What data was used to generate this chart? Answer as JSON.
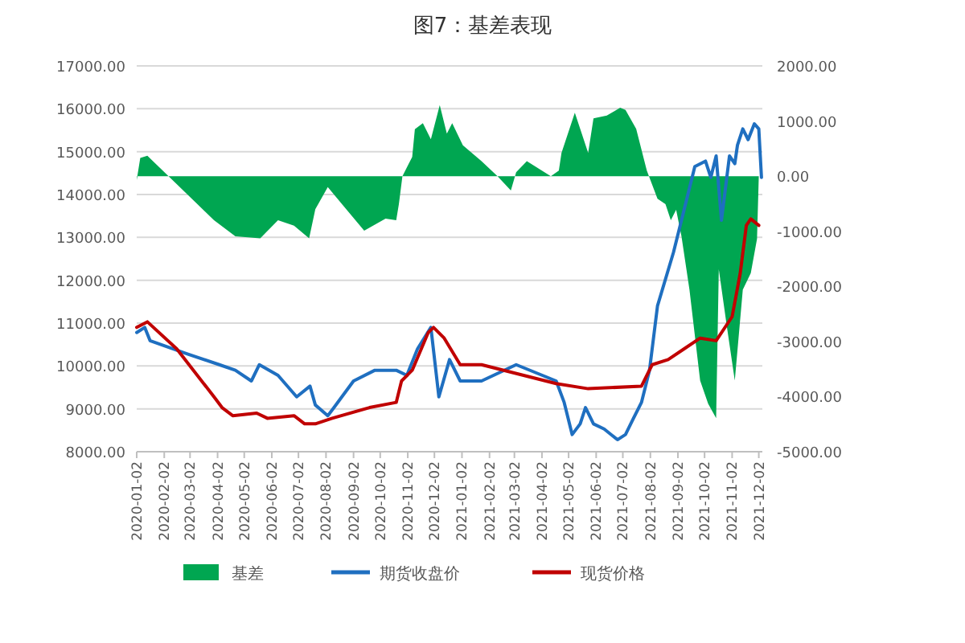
{
  "chart_data": {
    "type": "line",
    "title": "图7：基差表现",
    "grid": "y",
    "legend": "bottom",
    "xlim": [
      "2020-01-02",
      "2021-12-06"
    ],
    "xticks": [
      {
        "value": "2020-01-02",
        "label": "2020-01-02"
      },
      {
        "value": "2020-02-02",
        "label": "2020-02-02"
      },
      {
        "value": "2020-03-02",
        "label": "2020-03-02"
      },
      {
        "value": "2020-04-02",
        "label": "2020-04-02"
      },
      {
        "value": "2020-05-02",
        "label": "2020-05-02"
      },
      {
        "value": "2020-06-02",
        "label": "2020-06-02"
      },
      {
        "value": "2020-07-02",
        "label": "2020-07-02"
      },
      {
        "value": "2020-08-02",
        "label": "2020-08-02"
      },
      {
        "value": "2020-09-02",
        "label": "2020-09-02"
      },
      {
        "value": "2020-10-02",
        "label": "2020-10-02"
      },
      {
        "value": "2020-11-02",
        "label": "2020-11-02"
      },
      {
        "value": "2020-12-02",
        "label": "2020-12-02"
      },
      {
        "value": "2021-01-02",
        "label": "2021-01-02"
      },
      {
        "value": "2021-02-02",
        "label": "2021-02-02"
      },
      {
        "value": "2021-03-02",
        "label": "2021-03-02"
      },
      {
        "value": "2021-04-02",
        "label": "2021-04-02"
      },
      {
        "value": "2021-05-02",
        "label": "2021-05-02"
      },
      {
        "value": "2021-06-02",
        "label": "2021-06-02"
      },
      {
        "value": "2021-07-02",
        "label": "2021-07-02"
      },
      {
        "value": "2021-08-02",
        "label": "2021-08-02"
      },
      {
        "value": "2021-09-02",
        "label": "2021-09-02"
      },
      {
        "value": "2021-10-02",
        "label": "2021-10-02"
      },
      {
        "value": "2021-11-02",
        "label": "2021-11-02"
      },
      {
        "value": "2021-12-02",
        "label": "2021-12-02"
      }
    ],
    "ylim": [
      8000,
      17000
    ],
    "yticks": [
      {
        "value": 8000,
        "label": "8000.00"
      },
      {
        "value": 9000,
        "label": "9000.00"
      },
      {
        "value": 10000,
        "label": "10000.00"
      },
      {
        "value": 11000,
        "label": "11000.00"
      },
      {
        "value": 12000,
        "label": "12000.00"
      },
      {
        "value": 13000,
        "label": "13000.00"
      },
      {
        "value": 14000,
        "label": "14000.00"
      },
      {
        "value": 15000,
        "label": "15000.00"
      },
      {
        "value": 16000,
        "label": "16000.00"
      },
      {
        "value": 17000,
        "label": "17000.00"
      }
    ],
    "y2lim": [
      -5000,
      2000
    ],
    "y2ticks": [
      {
        "value": -5000,
        "label": "-5000.00"
      },
      {
        "value": -4000,
        "label": "-4000.00"
      },
      {
        "value": -3000,
        "label": "-3000.00"
      },
      {
        "value": -2000,
        "label": "-2000.00"
      },
      {
        "value": -1000,
        "label": "-1000.00"
      },
      {
        "value": 0,
        "label": "0.00"
      },
      {
        "value": 1000,
        "label": "1000.00"
      },
      {
        "value": 2000,
        "label": "2000.00"
      }
    ],
    "series": [
      {
        "name": "基差",
        "type": "area",
        "axis": "y2",
        "color": "#00a651",
        "x": [
          "2020-01-02",
          "2020-01-06",
          "2020-01-14",
          "2020-03-29",
          "2020-04-22",
          "2020-05-20",
          "2020-06-09",
          "2020-06-27",
          "2020-07-14",
          "2020-07-21",
          "2020-08-04",
          "2020-09-14",
          "2020-10-08",
          "2020-10-20",
          "2020-10-23",
          "2020-10-27",
          "2020-11-07",
          "2020-11-10",
          "2020-11-19",
          "2020-11-28",
          "2020-12-08",
          "2020-12-16",
          "2020-12-22",
          "2021-01-03",
          "2021-01-24",
          "2021-02-11",
          "2021-02-26",
          "2021-03-04",
          "2021-03-16",
          "2021-04-12",
          "2021-04-21",
          "2021-04-24",
          "2021-05-09",
          "2021-05-15",
          "2021-05-24",
          "2021-05-30",
          "2021-06-14",
          "2021-06-29",
          "2021-07-05",
          "2021-07-17",
          "2021-07-29",
          "2021-08-10",
          "2021-08-19",
          "2021-08-25",
          "2021-08-31",
          "2021-09-06",
          "2021-09-15",
          "2021-09-27",
          "2021-10-06",
          "2021-10-15",
          "2021-10-18",
          "2021-10-27",
          "2021-11-05",
          "2021-11-14",
          "2021-11-23",
          "2021-11-30",
          "2021-12-02"
        ],
        "values": [
          -70,
          330,
          370,
          -800,
          -1090,
          -1130,
          -800,
          -900,
          -1130,
          -600,
          -200,
          -990,
          -770,
          -800,
          -510,
          0,
          350,
          850,
          960,
          670,
          1290,
          770,
          960,
          560,
          270,
          0,
          -260,
          70,
          270,
          0,
          100,
          420,
          1150,
          860,
          420,
          1050,
          1100,
          1240,
          1200,
          860,
          100,
          -410,
          -510,
          -800,
          -610,
          -1090,
          -2060,
          -3710,
          -4130,
          -4390,
          -1690,
          -2720,
          -3710,
          -2060,
          -1760,
          -1140,
          0
        ]
      },
      {
        "name": "期货收盘价",
        "color": "#1f6fc0",
        "x": [
          "2020-01-02",
          "2020-01-11",
          "2020-01-17",
          "2020-02-28",
          "2020-04-04",
          "2020-04-22",
          "2020-05-10",
          "2020-05-19",
          "2020-06-09",
          "2020-06-30",
          "2020-07-15",
          "2020-07-21",
          "2020-08-04",
          "2020-08-11",
          "2020-09-02",
          "2020-09-26",
          "2020-10-20",
          "2020-11-01",
          "2020-11-13",
          "2020-11-28",
          "2020-12-07",
          "2020-12-19",
          "2020-12-31",
          "2021-01-24",
          "2021-03-04",
          "2021-04-18",
          "2021-04-27",
          "2021-05-06",
          "2021-05-15",
          "2021-05-21",
          "2021-05-30",
          "2021-06-11",
          "2021-06-26",
          "2021-07-05",
          "2021-07-14",
          "2021-07-23",
          "2021-08-01",
          "2021-08-10",
          "2021-08-28",
          "2021-09-09",
          "2021-09-21",
          "2021-10-03",
          "2021-10-09",
          "2021-10-15",
          "2021-10-21",
          "2021-10-30",
          "2021-11-05",
          "2021-11-08",
          "2021-11-14",
          "2021-11-20",
          "2021-11-27",
          "2021-12-02",
          "2021-12-05"
        ],
        "values": [
          10780,
          10900,
          10590,
          10280,
          10030,
          9900,
          9650,
          10030,
          9780,
          9280,
          9530,
          9090,
          8840,
          9030,
          9650,
          9900,
          9900,
          9780,
          10400,
          10900,
          9280,
          10150,
          9650,
          9650,
          10030,
          9650,
          9150,
          8400,
          8650,
          9030,
          8650,
          8530,
          8280,
          8400,
          8780,
          9150,
          9900,
          11400,
          12650,
          13650,
          14650,
          14780,
          14400,
          14900,
          13400,
          14900,
          14720,
          15150,
          15530,
          15280,
          15650,
          15530,
          14400
        ]
      },
      {
        "name": "现货价格",
        "color": "#c00000",
        "x": [
          "2020-01-02",
          "2020-01-14",
          "2020-02-16",
          "2020-03-29",
          "2020-04-07",
          "2020-04-19",
          "2020-05-16",
          "2020-05-28",
          "2020-06-27",
          "2020-07-09",
          "2020-07-21",
          "2020-08-09",
          "2020-09-20",
          "2020-10-20",
          "2020-10-26",
          "2020-11-07",
          "2020-11-25",
          "2020-12-01",
          "2020-12-13",
          "2020-12-31",
          "2021-01-24",
          "2021-04-18",
          "2021-05-24",
          "2021-07-23",
          "2021-08-04",
          "2021-08-22",
          "2021-09-09",
          "2021-09-27",
          "2021-10-15",
          "2021-11-02",
          "2021-11-11",
          "2021-11-18",
          "2021-11-23",
          "2021-12-02"
        ],
        "values": [
          10900,
          11030,
          10400,
          9280,
          9030,
          8840,
          8900,
          8780,
          8840,
          8650,
          8650,
          8780,
          9030,
          9150,
          9650,
          9900,
          10780,
          10900,
          10650,
          10030,
          10030,
          9590,
          9470,
          9530,
          10030,
          10150,
          10400,
          10650,
          10590,
          11150,
          12150,
          13280,
          13430,
          13280
        ]
      }
    ]
  }
}
